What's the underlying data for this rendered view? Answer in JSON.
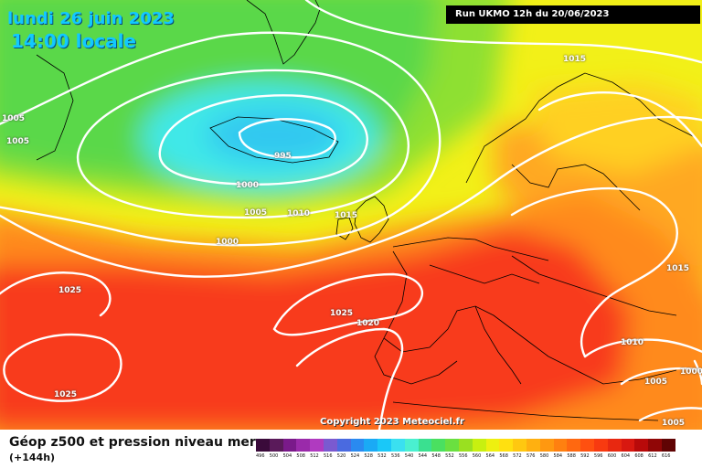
{
  "header": {
    "date": "lundi 26 juin 2023",
    "time": "14:00 locale",
    "run": "Run UKMO 12h du 20/06/2023"
  },
  "copyright": "Copyright 2023 Meteociel.fr",
  "isobar_labels": [
    "1015",
    "1005",
    "1005",
    "995",
    "1000",
    "1005",
    "1010",
    "1015",
    "1000",
    "1025",
    "1025",
    "1020",
    "1015",
    "1010",
    "1005",
    "1000",
    "1025",
    "1005"
  ],
  "footer": {
    "title": "Géop z500 et pression niveau mer",
    "subtitle": "(+144h)"
  },
  "scale": {
    "labels": [
      "496",
      "500",
      "504",
      "508",
      "512",
      "516",
      "520",
      "524",
      "528",
      "532",
      "536",
      "540",
      "544",
      "548",
      "552",
      "556",
      "560",
      "564",
      "568",
      "572",
      "576",
      "580",
      "584",
      "588",
      "592",
      "596",
      "600",
      "604",
      "608",
      "612",
      "616"
    ],
    "colors": [
      "#3a0a3a",
      "#5a1a5a",
      "#7a1a8a",
      "#9a2aaa",
      "#b03ac0",
      "#7a5ad0",
      "#4a6ae0",
      "#2a8af0",
      "#1aaaf5",
      "#1ac8f8",
      "#3ae0f0",
      "#4af0d0",
      "#3ae090",
      "#4ae060",
      "#6ae040",
      "#9ae020",
      "#c8f010",
      "#eef010",
      "#ffe010",
      "#ffc810",
      "#ffb010",
      "#ff9810",
      "#ff8010",
      "#ff6810",
      "#ff5010",
      "#f83a10",
      "#e82810",
      "#d81810",
      "#b80a0a",
      "#900606",
      "#600404"
    ]
  },
  "colors": {
    "green": "#5ad84a",
    "light_green": "#8ee030",
    "yellow": "#f2f018",
    "orange": "#ffa820",
    "red": "#f83a1a",
    "cyan": "#30c8f0",
    "light_cyan": "#40e8e8",
    "isobar": "#ffffff",
    "coastline": "#000000"
  }
}
